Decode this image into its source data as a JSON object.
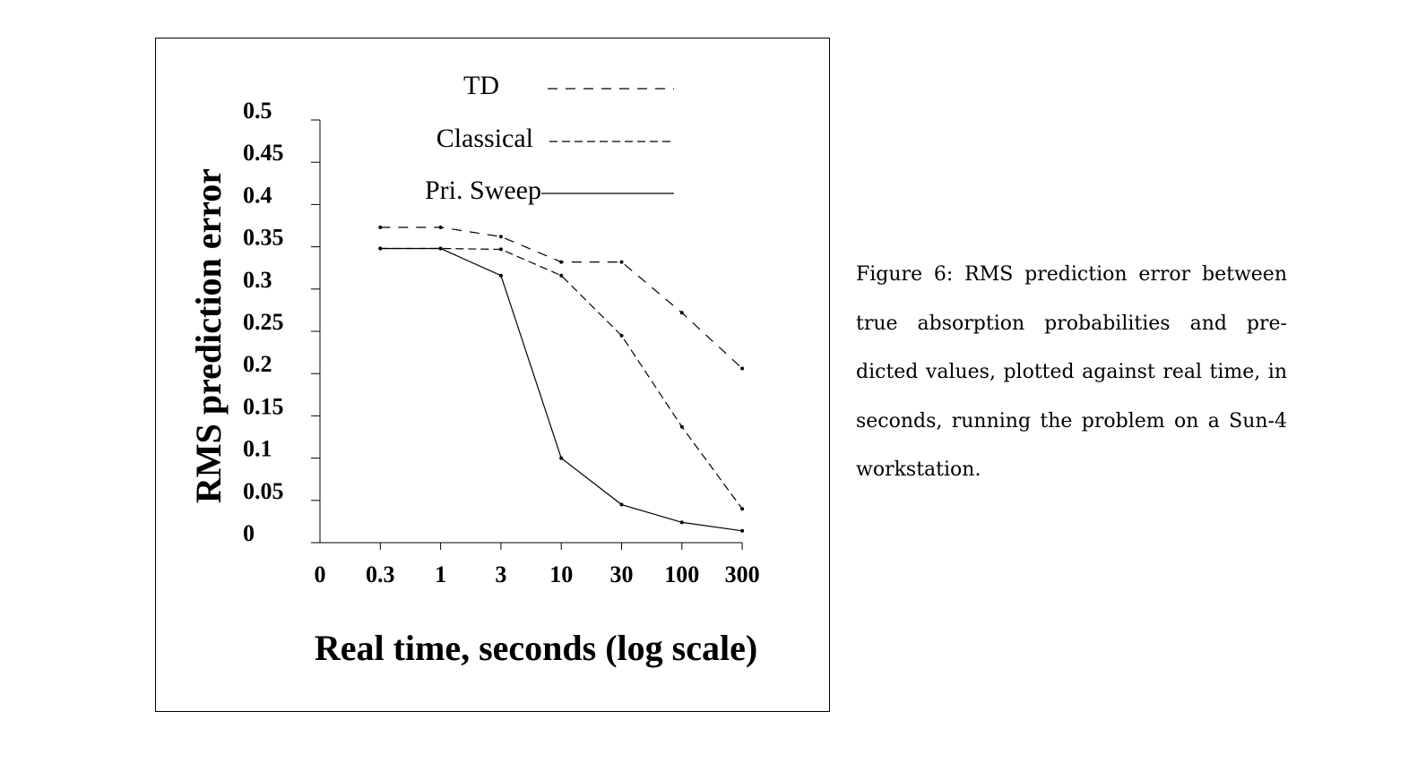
{
  "chart_data": {
    "type": "line",
    "x_labels": [
      "0",
      "0.3",
      "1",
      "3",
      "10",
      "30",
      "100",
      "300"
    ],
    "x_scale": "log",
    "xlabel": "Real time, seconds (log scale)",
    "ylabel": "RMS prediction error",
    "y_ticks": [
      "0",
      "0.05",
      "0.1",
      "0.15",
      "0.2",
      "0.25",
      "0.3",
      "0.35",
      "0.4",
      "0.45",
      "0.5"
    ],
    "ylim": [
      0,
      0.5
    ],
    "grid": false,
    "legend_placement": "top-center",
    "series": [
      {
        "name": "TD",
        "style": "long-dash",
        "x": [
          "0.3",
          "1",
          "3",
          "10",
          "30",
          "100",
          "300"
        ],
        "values": [
          0.373,
          0.373,
          0.362,
          0.332,
          0.332,
          0.272,
          0.206
        ]
      },
      {
        "name": "Classical",
        "style": "short-dash",
        "x": [
          "0.3",
          "1",
          "3",
          "10",
          "30",
          "100",
          "300"
        ],
        "values": [
          0.348,
          0.348,
          0.347,
          0.316,
          0.245,
          0.137,
          0.04
        ]
      },
      {
        "name": "Pri. Sweep",
        "style": "solid",
        "x": [
          "0.3",
          "1",
          "3",
          "10",
          "30",
          "100",
          "300"
        ],
        "values": [
          0.348,
          0.348,
          0.316,
          0.1,
          0.045,
          0.024,
          0.014
        ]
      }
    ]
  },
  "caption": {
    "text": "Figure 6: RMS prediction error between true absorption probabilities and pre-dicted values, plotted against real time, in seconds, running the problem on a Sun-4 workstation.",
    "lines": [
      "Figure 6: RMS prediction error between",
      "true absorption probabilities and pre-",
      "dicted values, plotted against real time, in",
      "seconds, running the problem on a Sun-4",
      "workstation."
    ]
  }
}
